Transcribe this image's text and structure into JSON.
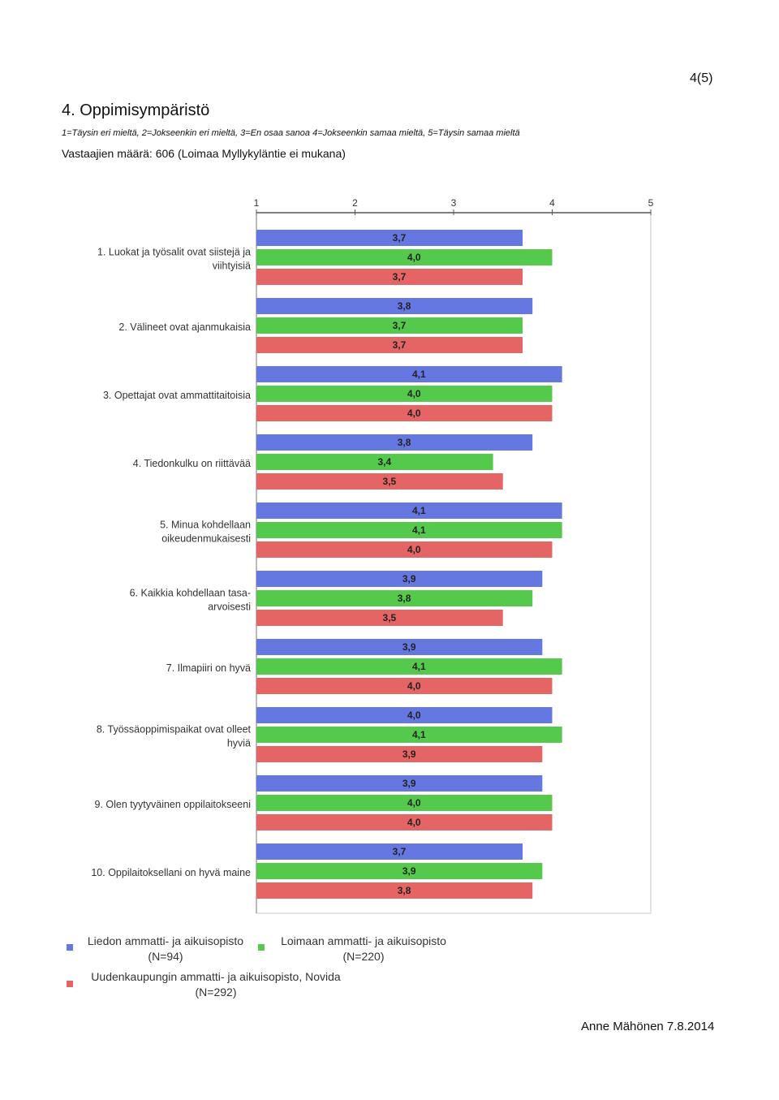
{
  "page_number": "4(5)",
  "title": "4. Oppimisympäristö",
  "scale_note": "1=Täysin eri mieltä, 2=Jokseenkin eri mieltä, 3=En osaa sanoa 4=Jokseenkin samaa mieltä, 5=Täysin samaa mieltä",
  "respondents": "Vastaajien määrä: 606 (Loimaa Myllykyläntie ei mukana)",
  "author_date": "Anne Mähönen 7.8.2014",
  "chart_data": {
    "type": "bar",
    "orientation": "horizontal",
    "xlim": [
      1,
      5
    ],
    "ticks": [
      "1",
      "2",
      "3",
      "4",
      "5"
    ],
    "grid": false,
    "legend_position": "bottom",
    "categories": [
      [
        "1. Luokat ja työsalit ovat siistejä ja",
        "viihtyisiä"
      ],
      [
        "2. Välineet ovat ajanmukaisia"
      ],
      [
        "3. Opettajat ovat ammattitaitoisia"
      ],
      [
        "4. Tiedonkulku on riittävää"
      ],
      [
        "5. Minua kohdellaan",
        "oikeudenmukaisesti"
      ],
      [
        "6. Kaikkia kohdellaan tasa-",
        "arvoisesti"
      ],
      [
        "7. Ilmapiiri on hyvä"
      ],
      [
        "8. Työssäoppimispaikat ovat olleet",
        "hyviä"
      ],
      [
        "9. Olen tyytyväinen oppilaitokseeni"
      ],
      [
        "10. Oppilaitoksellani on hyvä maine"
      ]
    ],
    "series": [
      {
        "legend": [
          "Liedon ammatti- ja aikuisopisto",
          "(N=94)"
        ],
        "color": "#6577e0",
        "values": [
          3.7,
          3.8,
          4.1,
          3.8,
          4.1,
          3.9,
          3.9,
          4.0,
          3.9,
          3.7
        ],
        "labels": [
          "3,7",
          "3,8",
          "4,1",
          "3,8",
          "4,1",
          "3,9",
          "3,9",
          "4,0",
          "3,9",
          "3,7"
        ]
      },
      {
        "legend": [
          "Loimaan ammatti- ja aikuisopisto",
          "(N=220)"
        ],
        "color": "#54c94c",
        "values": [
          4.0,
          3.7,
          4.0,
          3.4,
          4.1,
          3.8,
          4.1,
          4.1,
          4.0,
          3.9
        ],
        "labels": [
          "4,0",
          "3,7",
          "4,0",
          "3,4",
          "4,1",
          "3,8",
          "4,1",
          "4,1",
          "4,0",
          "3,9"
        ]
      },
      {
        "legend": [
          "Uudenkaupungin ammatti- ja aikuisopisto, Novida",
          "(N=292)"
        ],
        "color": "#e56464",
        "values": [
          3.7,
          3.7,
          4.0,
          3.5,
          4.0,
          3.5,
          4.0,
          3.9,
          4.0,
          3.8
        ],
        "labels": [
          "3,7",
          "3,7",
          "4,0",
          "3,5",
          "4,0",
          "3,5",
          "4,0",
          "3,9",
          "4,0",
          "3,8"
        ]
      }
    ]
  }
}
